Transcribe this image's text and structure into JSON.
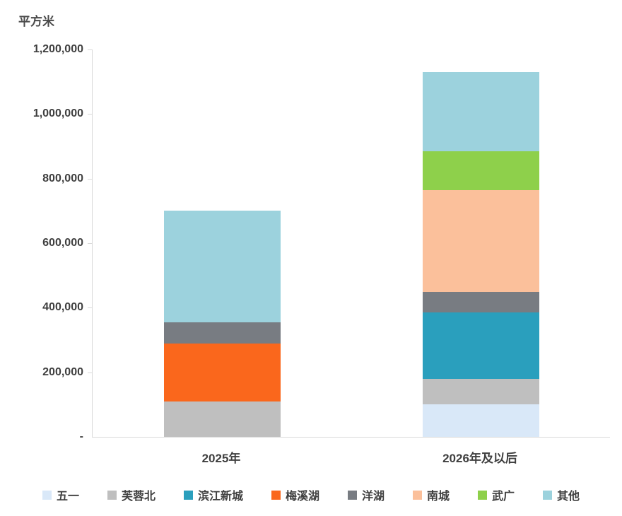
{
  "chart_data": {
    "type": "bar",
    "stacked": true,
    "title": "",
    "ylabel": "平方米",
    "xlabel": "",
    "categories": [
      "2025年",
      "2026年及以后"
    ],
    "series": [
      {
        "name": "五一",
        "color": "#d9e8f8",
        "values": [
          0,
          100000
        ]
      },
      {
        "name": "芙蓉北",
        "color": "#bfbfbf",
        "values": [
          110000,
          80000
        ]
      },
      {
        "name": "滨江新城",
        "color": "#2a9fbd",
        "values": [
          0,
          205000
        ]
      },
      {
        "name": "梅溪湖",
        "color": "#fa671c",
        "values": [
          180000,
          0
        ]
      },
      {
        "name": "洋湖",
        "color": "#787c82",
        "values": [
          65000,
          65000
        ]
      },
      {
        "name": "南城",
        "color": "#fbc09b",
        "values": [
          0,
          315000
        ]
      },
      {
        "name": "武广",
        "color": "#8ed04b",
        "values": [
          0,
          120000
        ]
      },
      {
        "name": "其他",
        "color": "#9cd2dd",
        "values": [
          345000,
          245000
        ]
      }
    ],
    "totals": [
      700000,
      1130000
    ],
    "ylim": [
      0,
      1200000
    ],
    "ytick_interval": 200000,
    "ytick_labels": [
      "-",
      "200,000",
      "400,000",
      "600,000",
      "800,000",
      "1,000,000",
      "1,200,000"
    ],
    "grid": false,
    "legend_position": "bottom",
    "axis_line_color": "#d9d9d9",
    "text_color": "#3f3f3f"
  }
}
